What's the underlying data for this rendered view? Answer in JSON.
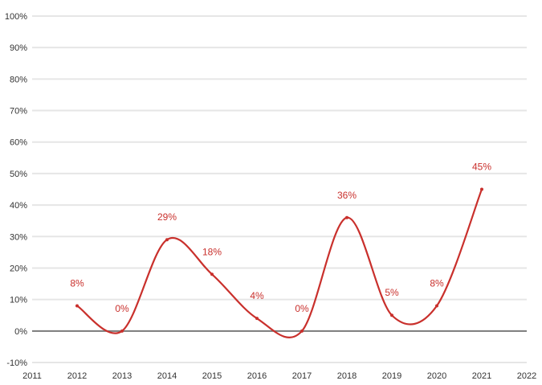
{
  "chart_data": {
    "type": "line",
    "title": "",
    "xlabel": "",
    "ylabel": "",
    "x": [
      2012,
      2013,
      2014,
      2015,
      2016,
      2017,
      2018,
      2019,
      2020,
      2021
    ],
    "series": [
      {
        "values": [
          8,
          0,
          29,
          18,
          4,
          0,
          36,
          5,
          8,
          45
        ],
        "labels": [
          "8%",
          "0%",
          "29%",
          "18%",
          "4%",
          "0%",
          "36%",
          "5%",
          "8%",
          "45%"
        ]
      }
    ],
    "xlim": [
      2011,
      2022
    ],
    "ylim": [
      -10,
      100
    ],
    "x_ticks": [
      "2011",
      "2012",
      "2013",
      "2014",
      "2015",
      "2016",
      "2017",
      "2018",
      "2019",
      "2020",
      "2021",
      "2022"
    ],
    "y_ticks": [
      "100%",
      "90%",
      "80%",
      "70%",
      "60%",
      "50%",
      "40%",
      "30%",
      "20%",
      "10%",
      "0%",
      "-10%"
    ],
    "grid": true,
    "legend": "none",
    "colors": {
      "line": "#c9302c",
      "grid": "#e6e6e6",
      "zero_line": "#7a7a7a",
      "label": "#c9302c"
    }
  }
}
